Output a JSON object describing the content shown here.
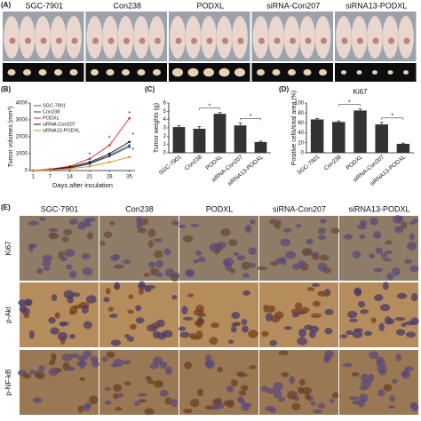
{
  "panel_labels": [
    "(A)",
    "(B)",
    "(C)",
    "(D)",
    "(E)"
  ],
  "groups": [
    "SGC-7901",
    "Con238",
    "PODXL",
    "siRNA-Con207",
    "siRNA13-PODXL"
  ],
  "stains": [
    "Ki67",
    "p-Akt",
    "p-NF-kB"
  ],
  "chart_data": [
    {
      "type": "line",
      "xlabel": "Days after inculation",
      "ylabel": "Tumor volumes (mm³)",
      "x": [
        1,
        7,
        14,
        21,
        28,
        35
      ],
      "xlim": [
        0,
        37
      ],
      "xticks": [
        1,
        7,
        14,
        21,
        28,
        35
      ],
      "ylim": [
        0,
        4000
      ],
      "yticks": [
        0,
        1000,
        2000,
        3000,
        4000
      ],
      "series": [
        {
          "name": "SGC-7901",
          "color": "#555555",
          "values": [
            0,
            50,
            150,
            450,
            900,
            1500
          ]
        },
        {
          "name": "Con238",
          "color": "#1f3f8f",
          "values": [
            0,
            50,
            140,
            400,
            850,
            1400
          ]
        },
        {
          "name": "PODXL",
          "color": "#e0231c",
          "values": [
            0,
            80,
            250,
            700,
            1500,
            3100
          ]
        },
        {
          "name": "siRNA-Con207",
          "color": "#111111",
          "values": [
            0,
            60,
            200,
            500,
            1000,
            1700
          ]
        },
        {
          "name": "siRNA13-PODXL",
          "color": "#f08a1c",
          "values": [
            0,
            40,
            100,
            250,
            500,
            800
          ]
        }
      ],
      "annotations": [
        "*",
        "*",
        "*",
        "*",
        "*"
      ]
    },
    {
      "type": "bar",
      "ylabel": "Tumor weights (g)",
      "color": "#333333",
      "categories": [
        "SGC-7901",
        "Con238",
        "PODXL",
        "siRNA-Con207",
        "siRNA13-PODXL"
      ],
      "values": [
        3.1,
        2.9,
        4.7,
        3.3,
        1.3
      ],
      "errors": [
        0.15,
        0.25,
        0.15,
        0.3,
        0.1
      ],
      "ylim": [
        0,
        6
      ],
      "yticks": [
        0,
        1,
        2,
        3,
        4,
        5,
        6
      ],
      "annotations": [
        "*",
        "*"
      ]
    },
    {
      "type": "bar",
      "title": "Ki67",
      "ylabel": "Positive cells/total area (%)",
      "color": "#333333",
      "categories": [
        "SGC-7901",
        "Con238",
        "PODXL",
        "siRNA-Con207",
        "siRNA13-PODXL"
      ],
      "values": [
        67,
        62,
        85,
        57,
        18
      ],
      "errors": [
        2,
        2,
        3,
        4,
        1.5
      ],
      "ylim": [
        0,
        100
      ],
      "yticks": [
        0,
        20,
        40,
        60,
        80,
        100
      ],
      "annotations": [
        "*",
        "*"
      ]
    }
  ]
}
